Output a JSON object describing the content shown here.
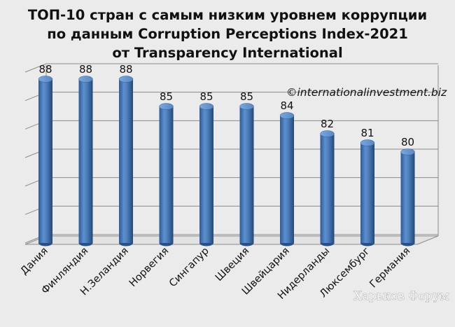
{
  "chart_data": {
    "type": "bar",
    "title": [
      "ТОП-10 стран с самым низким уровнем коррупции",
      "по данным Corruption Perceptions Index-2021",
      "от Transparency International"
    ],
    "categories": [
      "Дания",
      "Финляндия",
      "Н.Зеландия",
      "Норвегия",
      "Сингапур",
      "Швеция",
      "Швейцария",
      "Нидерланды",
      "Люксембург",
      "Германия"
    ],
    "values": [
      88,
      88,
      88,
      85,
      85,
      85,
      84,
      82,
      81,
      80
    ],
    "ylim": [
      70,
      88
    ],
    "grid": true,
    "bar_style": "3d-cylinder",
    "colors": {
      "bar": "#4f81bd",
      "bar_dark": "#2a4f82",
      "bar_light": "#8fb3e3",
      "background": "#ebebeb",
      "grid": "#8c8c8c"
    },
    "annotation": "©internationalinvestment.biz"
  },
  "watermark": "Харьков Форум"
}
